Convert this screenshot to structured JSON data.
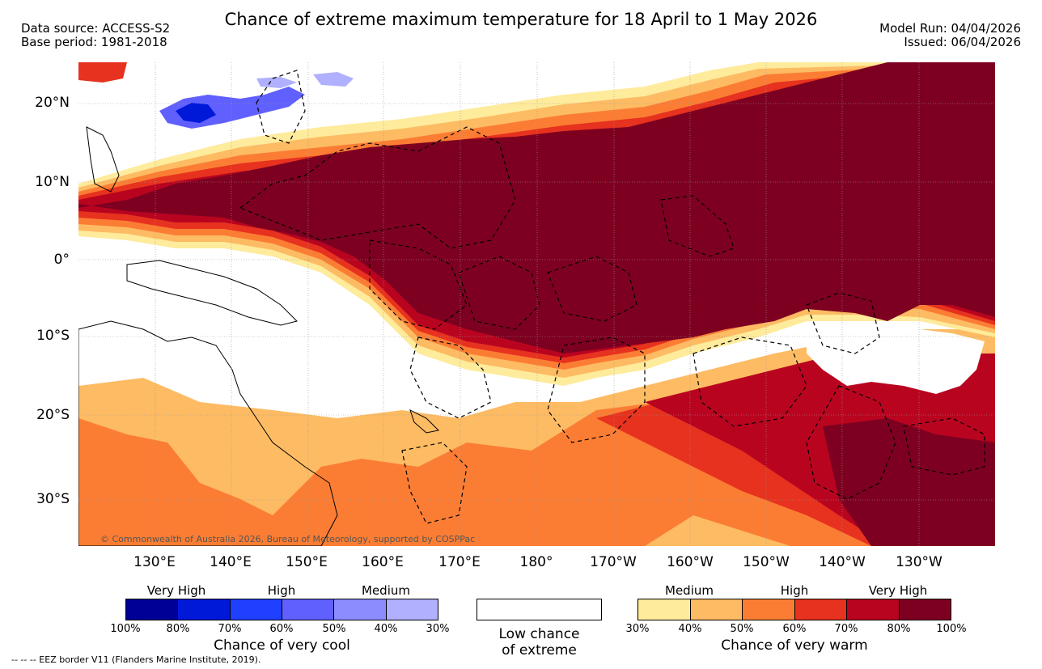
{
  "header": {
    "title": "Chance of extreme maximum temperature for 18 April to 1 May 2026",
    "data_source": "Data source: ACCESS-S2",
    "base_period": "Base period: 1981-2018",
    "model_run": "Model Run: 04/04/2026",
    "issued": "Issued: 06/04/2026"
  },
  "map": {
    "lat_labels": [
      "20°N",
      "10°N",
      "0°",
      "10°S",
      "20°S",
      "30°S"
    ],
    "lon_labels": [
      "130°E",
      "140°E",
      "150°E",
      "160°E",
      "170°E",
      "180°",
      "170°W",
      "160°W",
      "150°W",
      "140°W",
      "130°W"
    ],
    "copyright": "© Commonwealth of Australia 2026, Bureau of Meteorology, supported by COSPPac",
    "colors": {
      "ocean_white": "#ffffff",
      "warm_very_high_dark": "#800020",
      "warm_very_high": "#b5001f",
      "warm_high_dark": "#e3321f",
      "warm_high": "#fb7a35",
      "warm_medium_dark": "#fdb861",
      "warm_medium": "#fee99a",
      "cool_medium": "#6b6bff"
    }
  },
  "legend": {
    "cool": {
      "categories": [
        "Very High",
        "High",
        "Medium"
      ],
      "ticks": [
        "100%",
        "80%",
        "70%",
        "60%",
        "50%",
        "40%",
        "30%"
      ],
      "colors": [
        "#000096",
        "#0018d8",
        "#2040ff",
        "#6060ff",
        "#8c8cff",
        "#b0b0ff"
      ],
      "title": "Chance of very cool"
    },
    "neutral": {
      "line1": "Low chance",
      "line2": "of extreme"
    },
    "warm": {
      "categories": [
        "Medium",
        "High",
        "Very High"
      ],
      "ticks": [
        "30%",
        "40%",
        "50%",
        "60%",
        "70%",
        "80%",
        "100%"
      ],
      "colors": [
        "#feeb9c",
        "#fdbb63",
        "#fb7d34",
        "#e6321e",
        "#b90420",
        "#7e0021"
      ],
      "title": "Chance of very warm"
    }
  },
  "footnote": "-- -- -- EEZ border V11 (Flanders Marine Institute, 2019)."
}
